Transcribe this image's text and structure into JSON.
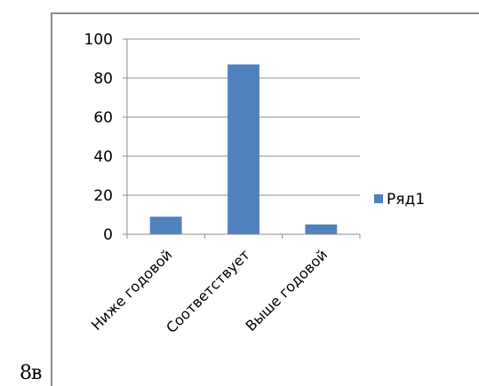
{
  "corner_label": "8в",
  "chart_data": {
    "type": "bar",
    "categories": [
      "Ниже годовой",
      "Соответствует",
      "Выше годовой"
    ],
    "series": [
      {
        "name": "Ряд1",
        "values": [
          9,
          87,
          5
        ],
        "color": "#4f81bd"
      }
    ],
    "yticks": [
      "0",
      "20",
      "40",
      "60",
      "80",
      "100"
    ],
    "ylim": [
      0,
      100
    ],
    "grid": true,
    "legend_position": "right",
    "title": "",
    "xlabel": "",
    "ylabel": ""
  }
}
